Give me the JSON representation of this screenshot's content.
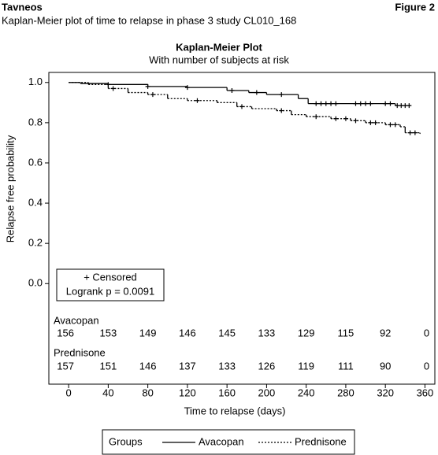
{
  "header": {
    "product": "Tavneos",
    "figure": "Figure 2",
    "caption": "Kaplan-Meier plot of time to relapse in phase 3 study CL010_168"
  },
  "chart_data": {
    "type": "kaplan-meier",
    "title": "Kaplan-Meier Plot",
    "subtitle": "With number of subjects at risk",
    "x_label": "Time to relapse (days)",
    "y_label": "Relapse free probability",
    "xlim": [
      -20,
      370
    ],
    "ylim": [
      -0.5,
      1.05
    ],
    "xticks": [
      0,
      40,
      80,
      120,
      160,
      200,
      240,
      280,
      320,
      360
    ],
    "yticks": [
      {
        "value": 0,
        "label": "0.0"
      },
      {
        "value": 0.2,
        "label": "0.2"
      },
      {
        "value": 0.4,
        "label": "0.4"
      },
      {
        "value": 0.6,
        "label": "0.6"
      },
      {
        "value": 0.8,
        "label": "0.8"
      },
      {
        "value": 1,
        "label": "1.0"
      }
    ],
    "annotation": {
      "censored": "+ Censored",
      "logrank": "Logrank p = 0.0091"
    },
    "legend_title": "Groups",
    "series": [
      {
        "name": "Avacopan",
        "color": "#000000",
        "style": "solid",
        "x": [
          0,
          12,
          40,
          80,
          120,
          160,
          182,
          200,
          232,
          242,
          330,
          345
        ],
        "values": [
          1,
          0.995,
          0.99,
          0.98,
          0.975,
          0.96,
          0.95,
          0.94,
          0.92,
          0.895,
          0.885,
          0.885
        ],
        "censored_x": [
          40,
          80,
          120,
          165,
          190,
          215,
          250,
          255,
          260,
          265,
          270,
          290,
          295,
          300,
          305,
          320,
          325,
          332,
          336,
          340,
          344
        ],
        "censored_y": [
          0.99,
          0.98,
          0.975,
          0.96,
          0.95,
          0.94,
          0.895,
          0.895,
          0.895,
          0.895,
          0.895,
          0.895,
          0.895,
          0.895,
          0.895,
          0.895,
          0.895,
          0.885,
          0.885,
          0.885,
          0.885
        ],
        "at_risk": [
          156,
          153,
          149,
          146,
          145,
          133,
          129,
          115,
          92,
          0
        ]
      },
      {
        "name": "Prednisone",
        "color": "#000000",
        "style": "dashed",
        "x": [
          0,
          20,
          40,
          60,
          80,
          100,
          120,
          150,
          170,
          185,
          210,
          225,
          240,
          265,
          285,
          300,
          320,
          335,
          340,
          355
        ],
        "values": [
          1,
          0.99,
          0.97,
          0.95,
          0.94,
          0.92,
          0.91,
          0.9,
          0.88,
          0.87,
          0.86,
          0.84,
          0.83,
          0.82,
          0.81,
          0.8,
          0.79,
          0.78,
          0.75,
          0.745
        ],
        "censored_x": [
          45,
          85,
          130,
          175,
          215,
          250,
          270,
          280,
          290,
          305,
          310,
          325,
          330,
          345,
          350
        ],
        "censored_y": [
          0.97,
          0.94,
          0.91,
          0.88,
          0.86,
          0.83,
          0.82,
          0.82,
          0.81,
          0.8,
          0.8,
          0.79,
          0.79,
          0.75,
          0.75
        ],
        "at_risk": [
          157,
          151,
          146,
          137,
          133,
          126,
          119,
          111,
          90,
          0
        ]
      }
    ]
  }
}
